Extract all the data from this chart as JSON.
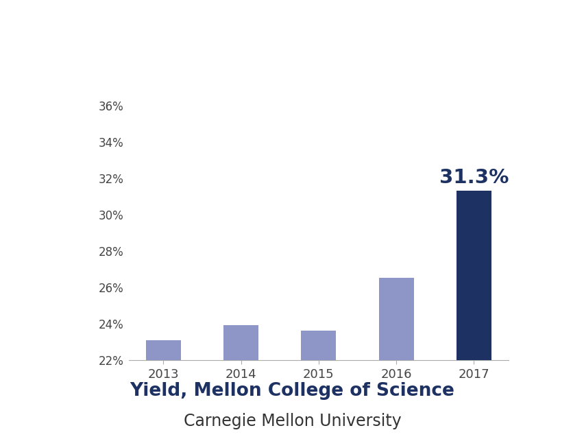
{
  "categories": [
    "2013",
    "2014",
    "2015",
    "2016",
    "2017"
  ],
  "values": [
    23.1,
    23.9,
    23.6,
    26.5,
    31.3
  ],
  "bar_colors": [
    "#8e96c8",
    "#8e96c8",
    "#8e96c8",
    "#8e96c8",
    "#1e3163"
  ],
  "highlight_label": "31.3%",
  "highlight_index": 4,
  "highlight_color": "#1e3163",
  "title_line1": "Yield, Mellon College of Science",
  "title_line2": "Carnegie Mellon University",
  "title_line1_color": "#1e3163",
  "title_line2_color": "#333333",
  "title_line1_fontsize": 19,
  "title_line2_fontsize": 17,
  "ylim_min": 22,
  "ylim_max": 36,
  "ytick_values": [
    22,
    24,
    26,
    28,
    30,
    32,
    34,
    36
  ],
  "background_color": "#ffffff",
  "tick_fontsize": 12,
  "xtick_fontsize": 13,
  "bar_width": 0.45,
  "annotation_fontsize": 21
}
